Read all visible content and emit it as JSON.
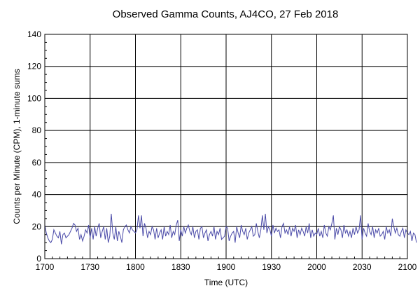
{
  "chart_data": {
    "type": "line",
    "title": "Observed Gamma Counts, AJ4CO, 27 Feb 2018",
    "xlabel": "Time (UTC)",
    "ylabel": "Counts per Minute (CPM), 1-minute sums",
    "xlim": [
      0,
      240
    ],
    "ylim": [
      0,
      140
    ],
    "x_ticks": [
      {
        "pos": 0,
        "label": "1700"
      },
      {
        "pos": 30,
        "label": "1730"
      },
      {
        "pos": 60,
        "label": "1800"
      },
      {
        "pos": 90,
        "label": "1830"
      },
      {
        "pos": 120,
        "label": "1900"
      },
      {
        "pos": 150,
        "label": "1930"
      },
      {
        "pos": 180,
        "label": "2000"
      },
      {
        "pos": 210,
        "label": "2030"
      },
      {
        "pos": 240,
        "label": "2100"
      }
    ],
    "y_ticks": [
      {
        "pos": 0,
        "label": "0"
      },
      {
        "pos": 20,
        "label": "20"
      },
      {
        "pos": 40,
        "label": "40"
      },
      {
        "pos": 60,
        "label": "60"
      },
      {
        "pos": 80,
        "label": "80"
      },
      {
        "pos": 100,
        "label": "100"
      },
      {
        "pos": 120,
        "label": "120"
      },
      {
        "pos": 140,
        "label": "140"
      }
    ],
    "grid": true,
    "legend": "none",
    "line_color": "#4a4aa8",
    "series": [
      {
        "x_start": 0,
        "x_step": 1,
        "values": [
          21,
          16,
          13,
          11,
          10,
          12,
          18,
          16,
          14,
          13,
          17,
          9,
          15,
          16,
          13,
          14,
          15,
          17,
          19,
          22,
          21,
          17,
          19,
          12,
          15,
          11,
          14,
          18,
          16,
          21,
          13,
          19,
          12,
          20,
          14,
          19,
          22,
          13,
          17,
          20,
          12,
          19,
          10,
          14,
          28,
          16,
          12,
          20,
          11,
          17,
          14,
          10,
          18,
          20,
          21,
          18,
          16,
          20,
          18,
          17,
          16,
          18,
          27,
          19,
          27,
          14,
          22,
          19,
          13,
          17,
          15,
          20,
          18,
          12,
          19,
          13,
          16,
          18,
          12,
          20,
          14,
          17,
          15,
          21,
          13,
          17,
          15,
          21,
          24,
          11,
          18,
          14,
          20,
          16,
          19,
          21,
          17,
          15,
          20,
          13,
          17,
          18,
          12,
          19,
          20,
          13,
          16,
          18,
          11,
          15,
          17,
          14,
          20,
          12,
          17,
          15,
          19,
          12,
          13,
          14,
          20,
          19,
          11,
          14,
          16,
          17,
          10,
          20,
          16,
          13,
          21,
          17,
          15,
          19,
          12,
          16,
          18,
          20,
          14,
          15,
          22,
          17,
          13,
          18,
          27,
          18,
          28,
          16,
          20,
          18,
          14,
          21,
          16,
          19,
          17,
          18,
          13,
          20,
          22,
          16,
          18,
          15,
          20,
          14,
          19,
          17,
          21,
          13,
          18,
          15,
          19,
          17,
          14,
          20,
          16,
          22,
          13,
          18,
          14,
          16,
          15,
          19,
          14,
          17,
          13,
          21,
          16,
          14,
          20,
          18,
          22,
          27,
          12,
          19,
          15,
          20,
          18,
          13,
          21,
          16,
          18,
          14,
          17,
          13,
          19,
          15,
          20,
          16,
          18,
          27,
          12,
          19,
          16,
          14,
          22,
          17,
          15,
          20,
          13,
          18,
          16,
          19,
          14,
          15,
          17,
          12,
          20,
          16,
          18,
          14,
          25,
          20,
          16,
          19,
          15,
          14,
          17,
          19,
          13,
          18,
          16,
          15,
          17,
          11,
          16,
          15,
          10
        ]
      }
    ]
  }
}
